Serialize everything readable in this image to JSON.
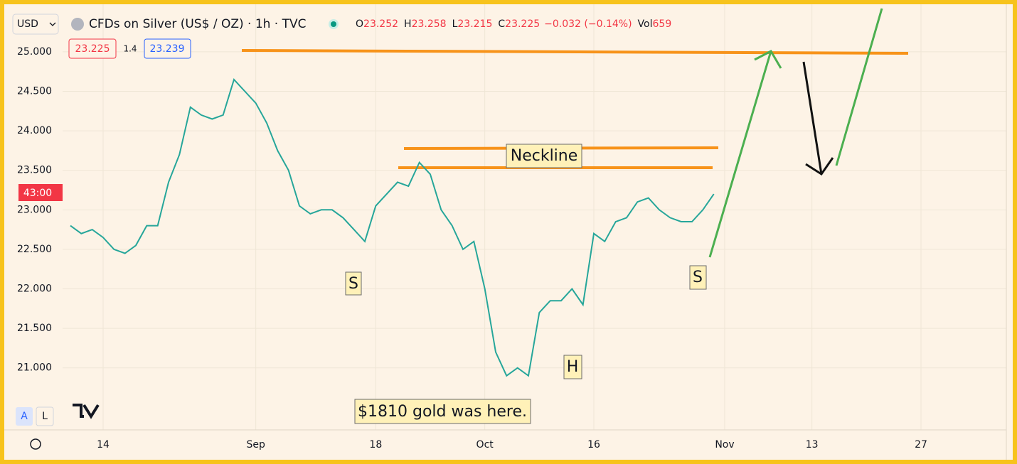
{
  "header": {
    "currency": "USD",
    "symbol": "CFDs on Silver (US$ / OZ) · 1h · TVC",
    "open_label": "O",
    "open": "23.252",
    "high_label": "H",
    "high": "23.258",
    "low_label": "L",
    "low": "23.215",
    "close_label": "C",
    "close": "23.225",
    "change": "−0.032 (−0.14%)",
    "volume_label": "Vol",
    "volume": "659",
    "bid": "23.225",
    "spread": "1.4",
    "ask": "23.239",
    "countdown": "43:00",
    "auto_button": "A",
    "log_button": "L"
  },
  "chart_data": {
    "type": "line",
    "color": "#26a69a",
    "grid": true,
    "categories": [
      null,
      null,
      null,
      "14",
      null,
      null,
      null,
      null,
      null,
      null,
      null,
      null,
      null,
      null,
      null,
      null,
      null,
      "Sep",
      null,
      null,
      null,
      null,
      null,
      null,
      null,
      null,
      null,
      null,
      "18",
      null,
      null,
      null,
      null,
      null,
      null,
      null,
      null,
      null,
      "Oct",
      null,
      null,
      null,
      null,
      null,
      null,
      null,
      null,
      null,
      "16",
      null,
      null,
      null,
      null,
      null,
      null,
      null,
      null,
      null,
      null,
      null,
      "Nov",
      null,
      null,
      null,
      null,
      null,
      null,
      null,
      "13",
      null,
      null,
      null,
      null,
      null,
      null,
      null,
      null,
      null,
      "27",
      null,
      null,
      null
    ],
    "values": [
      22.8,
      22.7,
      22.75,
      22.65,
      22.5,
      22.45,
      22.55,
      22.8,
      22.8,
      23.35,
      23.7,
      24.3,
      24.2,
      24.15,
      24.2,
      24.65,
      24.5,
      24.35,
      24.1,
      23.75,
      23.5,
      23.05,
      22.95,
      23.0,
      23.0,
      22.9,
      22.75,
      22.6,
      23.05,
      23.2,
      23.35,
      23.3,
      23.6,
      23.45,
      23.0,
      22.8,
      22.5,
      22.6,
      22.0,
      21.2,
      20.9,
      21.0,
      20.9,
      21.7,
      21.85,
      21.85,
      22.0,
      21.8,
      22.7,
      22.6,
      22.85,
      22.9,
      23.1,
      23.15,
      23.0,
      22.9,
      22.85,
      22.85,
      23.0,
      23.2,
      null,
      null,
      null,
      null,
      null,
      null,
      null,
      null,
      null,
      null,
      null,
      null,
      null,
      null,
      null,
      null,
      null,
      null,
      null,
      null,
      null,
      null
    ],
    "ylim": [
      20.26,
      25.566
    ],
    "yticks": [
      {
        "value": 21,
        "label": "21.000"
      },
      {
        "value": 21.5,
        "label": "21.500"
      },
      {
        "value": 22,
        "label": "22.000"
      },
      {
        "value": 22.5,
        "label": "22.500"
      },
      {
        "value": 23,
        "label": "23.000"
      },
      {
        "value": 23.5,
        "label": "23.500"
      },
      {
        "value": 24,
        "label": "24.000"
      },
      {
        "value": 24.5,
        "label": "24.500"
      },
      {
        "value": 25,
        "label": "25.000"
      }
    ],
    "annotations": [
      "S",
      "Neckline",
      "S",
      "H",
      "$1810 gold was here."
    ]
  }
}
